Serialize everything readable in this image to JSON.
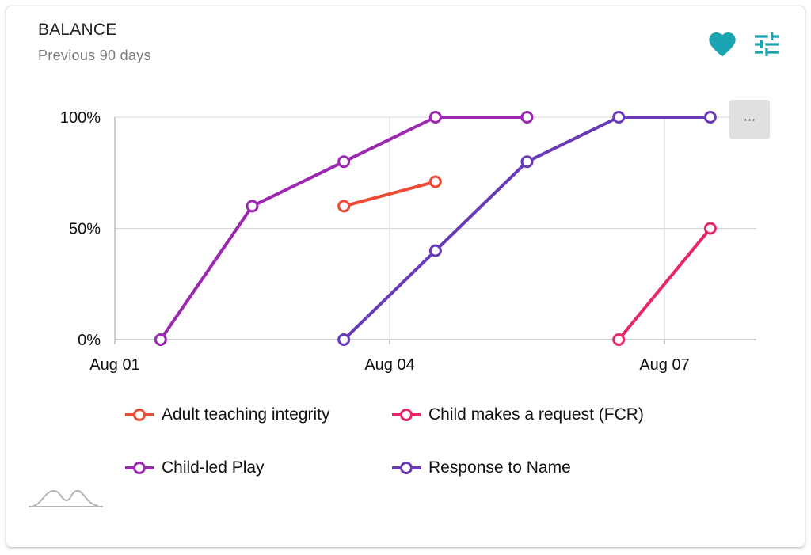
{
  "card": {
    "title": "BALANCE",
    "subtitle": "Previous 90 days",
    "favorite_icon": "heart-icon",
    "settings_icon": "tune-sliders-icon",
    "more_label": "···",
    "footer_icon": "sparkline-icon"
  },
  "colors": {
    "accent": "#1aa3b0",
    "grid": "#d6d6d6",
    "axis": "#9e9e9e"
  },
  "chart_data": {
    "type": "line",
    "x_ticks": [
      "Aug 01",
      "Aug 04",
      "Aug 07"
    ],
    "y_ticks": [
      "0%",
      "50%",
      "100%"
    ],
    "ylim": [
      0,
      100
    ],
    "xlim": [
      "Aug 01",
      "Aug 08"
    ],
    "grid": true,
    "legend_position": "bottom",
    "series": [
      {
        "name": "Adult teaching integrity",
        "color": "#ee4b36",
        "points": [
          [
            "Aug 03",
            60
          ],
          [
            "Aug 04",
            71
          ]
        ]
      },
      {
        "name": "Child makes a request (FCR)",
        "color": "#e8246a",
        "points": [
          [
            "Aug 06",
            0
          ],
          [
            "Aug 07",
            50
          ]
        ]
      },
      {
        "name": "Child-led Play",
        "color": "#9c27b0",
        "points": [
          [
            "Aug 01",
            0
          ],
          [
            "Aug 02",
            60
          ],
          [
            "Aug 03",
            80
          ],
          [
            "Aug 04",
            100
          ],
          [
            "Aug 05",
            100
          ]
        ]
      },
      {
        "name": "Response to Name",
        "color": "#673ab7",
        "points": [
          [
            "Aug 03",
            0
          ],
          [
            "Aug 04",
            40
          ],
          [
            "Aug 05",
            80
          ],
          [
            "Aug 06",
            100
          ],
          [
            "Aug 07",
            100
          ]
        ]
      }
    ]
  }
}
